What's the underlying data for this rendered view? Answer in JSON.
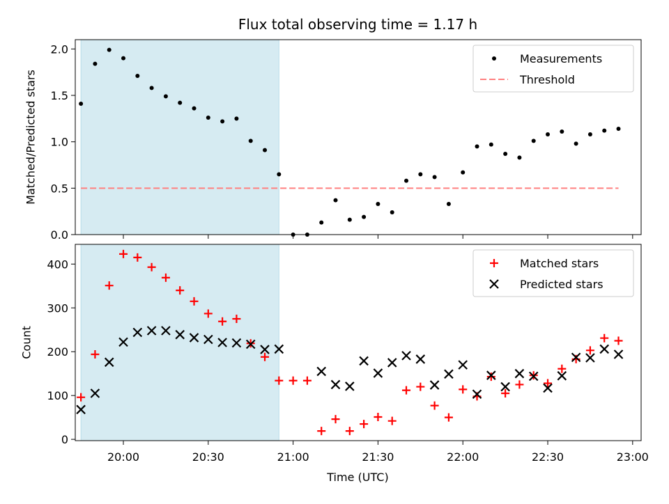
{
  "figure": {
    "title": "Flux total observing time = 1.17 h"
  },
  "chart_data": [
    {
      "type": "scatter",
      "title": "Flux total observing time = 1.17 h",
      "xlabel": "",
      "ylabel": "Matched/Predicted stars",
      "xlim": [
        "19:43",
        "23:03"
      ],
      "ylim": [
        0,
        2.1
      ],
      "y_ticks": [
        "0.0",
        "0.5",
        "1.0",
        "1.5",
        "2.0"
      ],
      "highlight_span": [
        "19:45",
        "20:55"
      ],
      "highlight_color": "#add8e6",
      "series": [
        {
          "name": "Measurements",
          "color": "#000000",
          "marker": "dot",
          "x": [
            "19:45",
            "19:50",
            "19:55",
            "20:00",
            "20:05",
            "20:10",
            "20:15",
            "20:20",
            "20:25",
            "20:30",
            "20:35",
            "20:40",
            "20:45",
            "20:50",
            "20:55",
            "21:00",
            "21:05",
            "21:10",
            "21:15",
            "21:20",
            "21:25",
            "21:30",
            "21:35",
            "21:40",
            "21:45",
            "21:50",
            "21:55",
            "22:00",
            "22:05",
            "22:10",
            "22:15",
            "22:20",
            "22:25",
            "22:30",
            "22:35",
            "22:40",
            "22:45",
            "22:50",
            "22:55"
          ],
          "y": [
            1.41,
            1.84,
            1.99,
            1.9,
            1.71,
            1.58,
            1.49,
            1.42,
            1.36,
            1.26,
            1.22,
            1.25,
            1.01,
            0.91,
            0.65,
            0.0,
            0.0,
            0.13,
            0.37,
            0.16,
            0.19,
            0.33,
            0.24,
            0.58,
            0.65,
            0.62,
            0.33,
            0.67,
            0.95,
            0.97,
            0.87,
            0.83,
            1.01,
            1.08,
            1.11,
            0.98,
            1.08,
            1.12,
            1.14
          ]
        },
        {
          "name": "Threshold",
          "color": "#ff7f7f",
          "line": "dashed",
          "x": [
            "19:45",
            "22:55"
          ],
          "y": [
            0.5,
            0.5
          ]
        }
      ],
      "legend": "top-right"
    },
    {
      "type": "scatter",
      "title": "",
      "xlabel": "Time (UTC)",
      "ylabel": "Count",
      "xlim": [
        "19:43",
        "23:03"
      ],
      "ylim": [
        -3,
        445
      ],
      "x_ticks": [
        "20:00",
        "20:30",
        "21:00",
        "21:30",
        "22:00",
        "22:30",
        "23:00"
      ],
      "y_ticks": [
        "0",
        "100",
        "200",
        "300",
        "400"
      ],
      "highlight_span": [
        "19:45",
        "20:55"
      ],
      "highlight_color": "#add8e6",
      "series": [
        {
          "name": "Matched stars",
          "color": "#ff0000",
          "marker": "plus",
          "x": [
            "19:45",
            "19:50",
            "19:55",
            "20:00",
            "20:05",
            "20:10",
            "20:15",
            "20:20",
            "20:25",
            "20:30",
            "20:35",
            "20:40",
            "20:45",
            "20:50",
            "20:55",
            "21:00",
            "21:05",
            "21:10",
            "21:15",
            "21:20",
            "21:25",
            "21:30",
            "21:35",
            "21:40",
            "21:45",
            "21:50",
            "21:55",
            "22:00",
            "22:05",
            "22:10",
            "22:15",
            "22:20",
            "22:25",
            "22:30",
            "22:35",
            "22:40",
            "22:45",
            "22:50",
            "22:55"
          ],
          "y": [
            96,
            194,
            351,
            423,
            415,
            393,
            369,
            340,
            315,
            287,
            269,
            275,
            219,
            188,
            134,
            134,
            134,
            19,
            46,
            19,
            35,
            51,
            42,
            112,
            120,
            77,
            50,
            114,
            98,
            143,
            105,
            125,
            146,
            128,
            161,
            183,
            203,
            231,
            225
          ]
        },
        {
          "name": "Predicted stars",
          "color": "#000000",
          "marker": "x",
          "x": [
            "19:45",
            "19:50",
            "19:55",
            "20:00",
            "20:05",
            "20:10",
            "20:15",
            "20:20",
            "20:25",
            "20:30",
            "20:35",
            "20:40",
            "20:45",
            "20:50",
            "20:55",
            "21:10",
            "21:15",
            "21:20",
            "21:25",
            "21:30",
            "21:35",
            "21:40",
            "21:45",
            "21:50",
            "21:55",
            "22:00",
            "22:05",
            "22:10",
            "22:15",
            "22:20",
            "22:25",
            "22:30",
            "22:35",
            "22:40",
            "22:45",
            "22:50",
            "22:55"
          ],
          "y": [
            68,
            105,
            176,
            222,
            244,
            248,
            248,
            239,
            232,
            228,
            221,
            220,
            217,
            205,
            206,
            155,
            125,
            121,
            179,
            151,
            175,
            191,
            183,
            124,
            149,
            170,
            103,
            146,
            120,
            150,
            144,
            117,
            145,
            187,
            186,
            206,
            194
          ]
        }
      ],
      "legend": "top-right"
    }
  ]
}
